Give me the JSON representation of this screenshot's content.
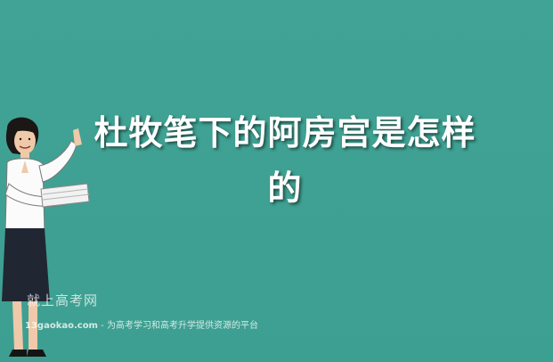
{
  "article": {
    "title_line1": "杜牧笔下的阿房宫是怎样",
    "title_line2": "的"
  },
  "watermark": {
    "brand": "就上高考网",
    "site": "13gaokao.com",
    "separator": " - ",
    "slogan": "为高考学习和高考升学提供资源的平台"
  },
  "colors": {
    "background": "#3fa294",
    "title": "#ffffff"
  },
  "illustration": {
    "icon": "teacher-illustration-icon"
  }
}
